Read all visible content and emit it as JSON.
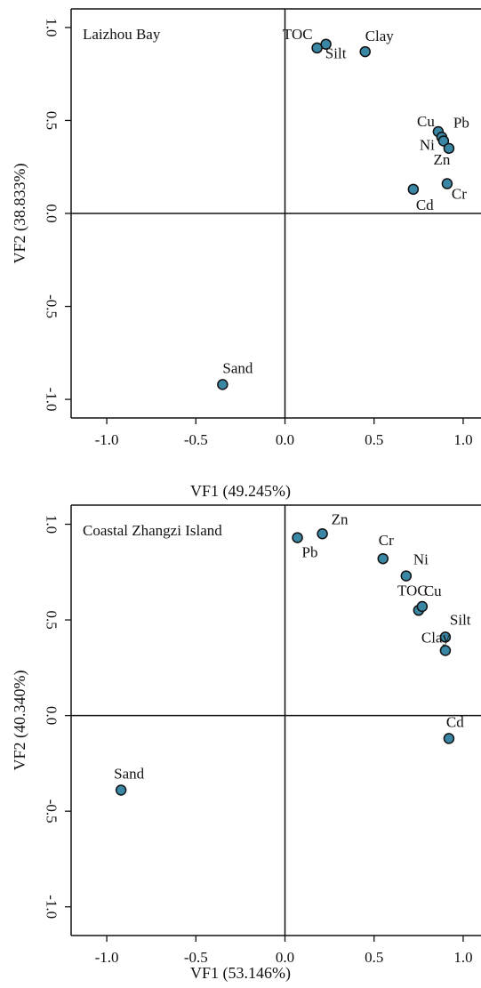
{
  "chart_data": [
    {
      "type": "scatter",
      "panel_label": "Laizhou Bay",
      "xlabel": "VF1 (49.245%)",
      "ylabel": "VF2 (38.833%)",
      "xlim": [
        -1.2,
        1.1
      ],
      "ylim": [
        -1.1,
        1.1
      ],
      "xticks": [
        "-1.0",
        "-0.5",
        "0.0",
        "0.5",
        "1.0"
      ],
      "yticks": [
        "1.0",
        "0.5",
        "0.0",
        "-0.5",
        "-1.0"
      ],
      "point_color": "#3a87a5",
      "points": [
        {
          "label": "TOC",
          "x": 0.18,
          "y": 0.89
        },
        {
          "label": "Silt",
          "x": 0.23,
          "y": 0.91
        },
        {
          "label": "Clay",
          "x": 0.45,
          "y": 0.87
        },
        {
          "label": "Cu",
          "x": 0.86,
          "y": 0.44
        },
        {
          "label": "Pb",
          "x": 0.88,
          "y": 0.41
        },
        {
          "label": "Ni",
          "x": 0.89,
          "y": 0.39
        },
        {
          "label": "Zn",
          "x": 0.92,
          "y": 0.35
        },
        {
          "label": "Cd",
          "x": 0.72,
          "y": 0.13
        },
        {
          "label": "Cr",
          "x": 0.91,
          "y": 0.16
        },
        {
          "label": "Sand",
          "x": -0.35,
          "y": -0.92
        }
      ]
    },
    {
      "type": "scatter",
      "panel_label": "Coastal Zhangzi Island",
      "xlabel": "VF1 (53.146%)",
      "ylabel": "VF2 (40.340%)",
      "xlim": [
        -1.2,
        1.1
      ],
      "ylim": [
        -1.15,
        1.1
      ],
      "xticks": [
        "-1.0",
        "-0.5",
        "0.0",
        "0.5",
        "1.0"
      ],
      "yticks": [
        "1.0",
        "0.5",
        "0.0",
        "-0.5",
        "-1.0"
      ],
      "point_color": "#3a87a5",
      "points": [
        {
          "label": "Pb",
          "x": 0.07,
          "y": 0.93
        },
        {
          "label": "Zn",
          "x": 0.21,
          "y": 0.95
        },
        {
          "label": "Cr",
          "x": 0.55,
          "y": 0.82
        },
        {
          "label": "Ni",
          "x": 0.68,
          "y": 0.73
        },
        {
          "label": "TOC",
          "x": 0.75,
          "y": 0.55
        },
        {
          "label": "Cu",
          "x": 0.77,
          "y": 0.57
        },
        {
          "label": "Silt",
          "x": 0.9,
          "y": 0.41
        },
        {
          "label": "Clay",
          "x": 0.9,
          "y": 0.34
        },
        {
          "label": "Cd",
          "x": 0.92,
          "y": -0.12
        },
        {
          "label": "Sand",
          "x": -0.92,
          "y": -0.39
        }
      ]
    }
  ]
}
